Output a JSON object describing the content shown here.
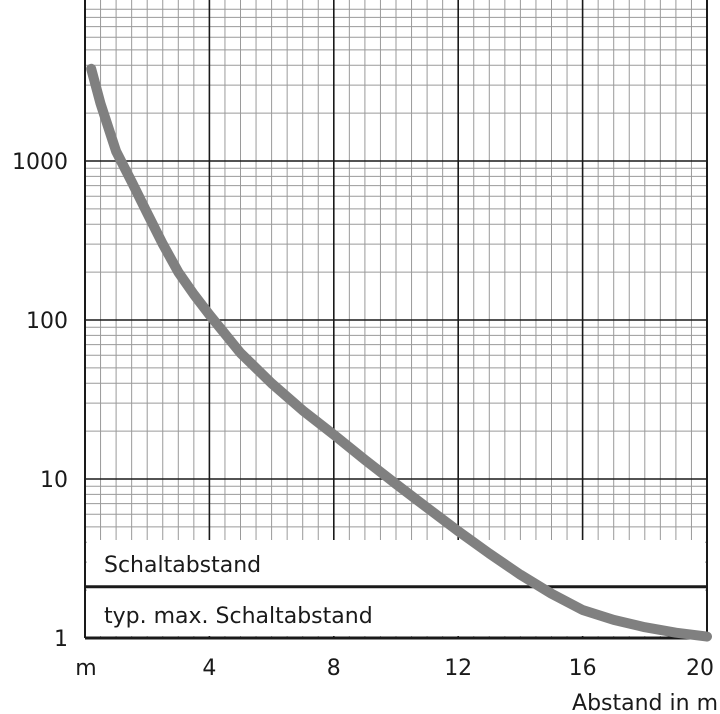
{
  "chart_data": {
    "type": "line",
    "title": "",
    "xlabel": "Abstand in m",
    "ylabel": "",
    "x_unit_tick": "m",
    "xlim": [
      0,
      20
    ],
    "ylim": [
      1,
      10000
    ],
    "yscale": "log",
    "xticks": [
      4,
      8,
      12,
      16,
      20
    ],
    "yticks": [
      1,
      10,
      100,
      1000
    ],
    "grid": true,
    "series": [
      {
        "color": "#808080",
        "x": [
          0.2,
          0.5,
          1.0,
          1.5,
          2.0,
          2.5,
          3.0,
          3.5,
          4.0,
          5.0,
          6.0,
          7.0,
          8.0,
          9.0,
          10.0,
          11.0,
          12.0,
          13.0,
          14.0,
          15.0,
          16.0,
          17.0,
          18.0,
          19.0,
          20.0
        ],
        "y": [
          3800,
          2300,
          1150,
          740,
          470,
          300,
          200,
          145,
          108,
          62,
          40,
          27,
          19,
          13.2,
          9.3,
          6.6,
          4.7,
          3.4,
          2.5,
          1.9,
          1.5,
          1.3,
          1.17,
          1.08,
          1.02
        ]
      }
    ],
    "annotations": {
      "line_value": 2.1,
      "upper_label": "Schaltabstand",
      "lower_label": "typ. max. Schaltabstand"
    }
  }
}
